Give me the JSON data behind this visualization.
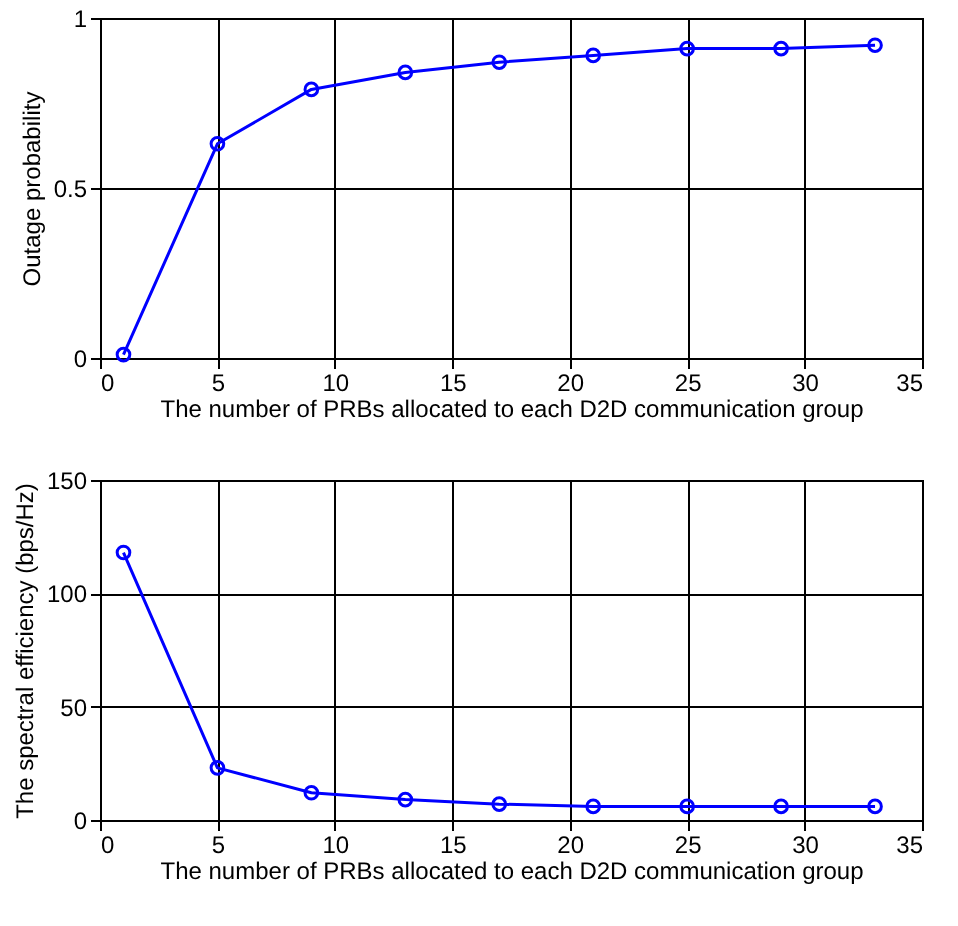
{
  "chart_data": [
    {
      "type": "line",
      "xlabel": "The number of PRBs allocated to each D2D communication group",
      "ylabel": "Outage probability",
      "x": [
        1,
        5,
        9,
        13,
        17,
        21,
        25,
        29,
        33
      ],
      "series": [
        {
          "color": "#0000ff",
          "values": [
            0.01,
            0.63,
            0.79,
            0.84,
            0.87,
            0.89,
            0.91,
            0.91,
            0.92
          ]
        }
      ],
      "xlim": [
        0,
        35
      ],
      "xticks": [
        0,
        5,
        10,
        15,
        20,
        25,
        30,
        35
      ],
      "ylim": [
        0,
        1
      ],
      "yticks": [
        0,
        0.5,
        1
      ],
      "grid": true,
      "marker": "circle",
      "line_style": "solid"
    },
    {
      "type": "line",
      "xlabel": "The number of PRBs allocated to each D2D communication group",
      "ylabel": "The spectral efficiency (bps/Hz)",
      "x": [
        1,
        5,
        9,
        13,
        17,
        21,
        25,
        29,
        33
      ],
      "series": [
        {
          "color": "#0000ff",
          "values": [
            118,
            23,
            12,
            9,
            7,
            6,
            6,
            6,
            6
          ]
        }
      ],
      "xlim": [
        0,
        35
      ],
      "xticks": [
        0,
        5,
        10,
        15,
        20,
        25,
        30,
        35
      ],
      "ylim": [
        0,
        150
      ],
      "yticks": [
        0,
        50,
        100,
        150
      ],
      "grid": true,
      "marker": "circle",
      "line_style": "solid"
    }
  ]
}
